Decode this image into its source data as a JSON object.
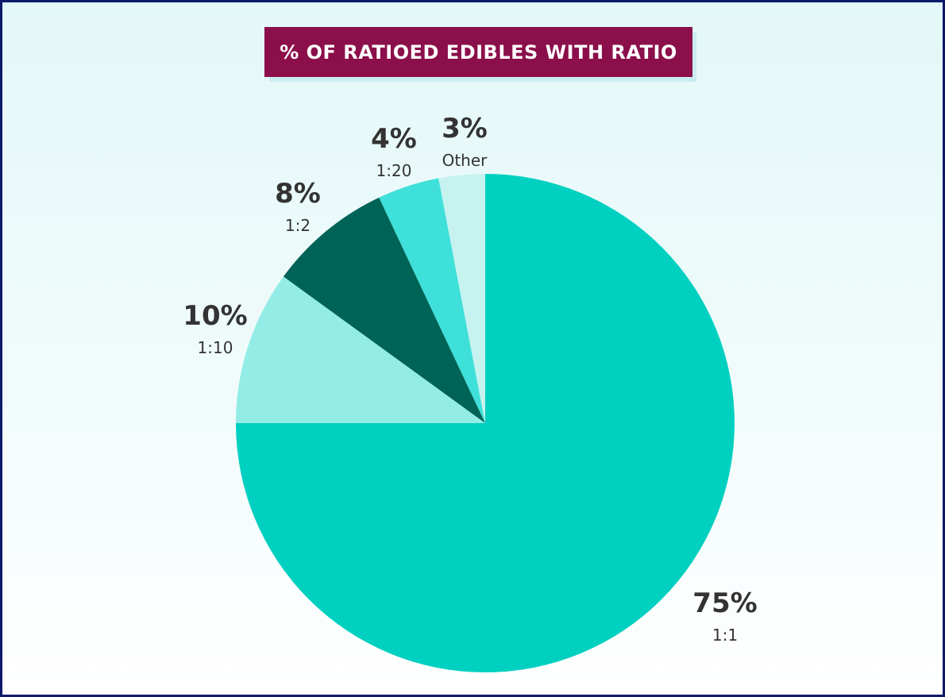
{
  "chart_data": {
    "type": "pie",
    "title": "% OF RATIOED EDIBLES WITH RATIO",
    "categories": [
      "1:1",
      "1:10",
      "1:2",
      "1:20",
      "Other"
    ],
    "values": [
      75,
      10,
      8,
      4,
      3
    ],
    "value_labels": [
      "75%",
      "10%",
      "8%",
      "4%",
      "3%"
    ],
    "colors": [
      "#00d0c0",
      "#93ede6",
      "#006357",
      "#3ee0d9",
      "#c6f2ef"
    ]
  }
}
